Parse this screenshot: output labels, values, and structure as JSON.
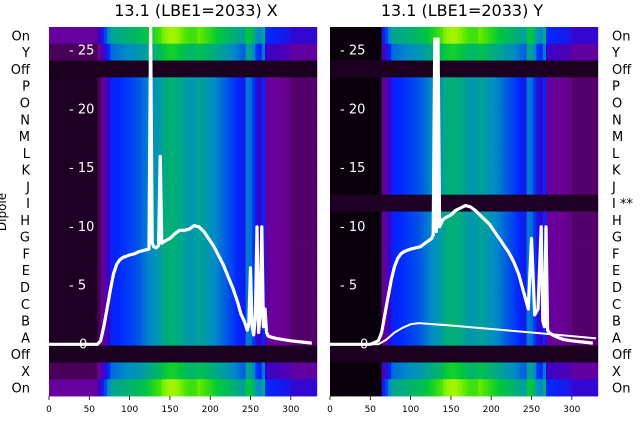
{
  "chart_data": [
    {
      "type": "heatmap",
      "title": "13.1 (LBE1=2033) X",
      "ylabel": "Dipole",
      "row_labels_top_to_bottom": [
        "On",
        "Y",
        "Off",
        "P",
        "O",
        "N",
        "M",
        "L",
        "K",
        "J",
        "I",
        "H",
        "G",
        "F",
        "E",
        "D",
        "C",
        "B",
        "A",
        "Off",
        "X",
        "On"
      ],
      "x_ticks": [
        0,
        50,
        100,
        150,
        200,
        250,
        300
      ],
      "xlim": [
        0,
        330
      ],
      "overlay_ticks": [
        0,
        5,
        10,
        15,
        20,
        25
      ],
      "overlay_ylim": [
        -4.4,
        27
      ],
      "overlay_series": [
        {
          "x": [
            0,
            30,
            60,
            64,
            68,
            72,
            76,
            80,
            84,
            88,
            92,
            96,
            100,
            106,
            112,
            118,
            124,
            126,
            128,
            130,
            133,
            136,
            138,
            140,
            144,
            150,
            156,
            162,
            168,
            174,
            180,
            186,
            192,
            198,
            204,
            210,
            216,
            222,
            228,
            234,
            238,
            242,
            244,
            246,
            248,
            250,
            252,
            254,
            256,
            258,
            260,
            262,
            264,
            266,
            268,
            270,
            272,
            276,
            282,
            290,
            300,
            312,
            326
          ],
          "y": [
            0,
            0,
            0,
            0.3,
            1.5,
            3,
            4.6,
            6,
            6.8,
            7.2,
            7.4,
            7.5,
            7.6,
            7.7,
            7.9,
            8,
            8.1,
            27,
            8.6,
            8.3,
            8.2,
            8.4,
            16,
            8.6,
            8.8,
            9,
            9.4,
            9.7,
            9.7,
            9.8,
            10.1,
            10,
            9.6,
            9,
            8.4,
            7.6,
            6.8,
            5.8,
            4.8,
            3.6,
            2.6,
            2,
            1.6,
            1.2,
            1.8,
            6.5,
            1.5,
            0.8,
            2.4,
            10,
            1,
            2.5,
            10,
            1.5,
            3,
            1,
            0.7,
            0.6,
            0.5,
            0.4,
            0.3,
            0.2,
            0.1
          ]
        }
      ],
      "colormap": "black-purple-blue-green-yellow"
    },
    {
      "type": "heatmap",
      "title": "13.1 (LBE1=2033) Y",
      "ylabel": "",
      "row_labels_top_to_bottom": [
        "On",
        "Y",
        "Off",
        "P",
        "O",
        "N",
        "M",
        "L",
        "K",
        "J",
        "I **",
        "H",
        "G",
        "F",
        "E",
        "D",
        "C",
        "B",
        "A",
        "Off",
        "X",
        "On"
      ],
      "x_ticks": [
        0,
        50,
        100,
        150,
        200,
        250,
        300
      ],
      "xlim": [
        0,
        330
      ],
      "overlay_ticks": [
        0,
        5,
        10,
        15,
        20,
        25
      ],
      "overlay_ylim": [
        -4.4,
        27
      ],
      "overlay_series": [
        {
          "x": [
            0,
            30,
            50,
            60,
            64,
            68,
            72,
            76,
            80,
            84,
            88,
            92,
            96,
            100,
            106,
            112,
            118,
            124,
            126,
            128,
            130,
            132,
            134,
            136,
            138,
            140,
            144,
            150,
            156,
            162,
            168,
            174,
            180,
            186,
            192,
            198,
            204,
            210,
            216,
            222,
            228,
            234,
            238,
            242,
            246,
            250,
            254,
            258,
            262,
            264,
            266,
            268,
            270,
            272,
            276,
            282,
            290,
            300,
            312,
            326
          ],
          "y": [
            0,
            0,
            0,
            0.3,
            1,
            2.5,
            4,
            5.5,
            6.6,
            7.3,
            7.7,
            7.9,
            8,
            8.1,
            8.2,
            8.3,
            8.6,
            8.9,
            9,
            9.3,
            26,
            9.6,
            26,
            10,
            10.3,
            10.6,
            10.8,
            11,
            11.4,
            11.6,
            11.8,
            11.7,
            11.4,
            11,
            10.6,
            10.2,
            9.6,
            9,
            8.4,
            7.8,
            7,
            6,
            5,
            4,
            3,
            9,
            2.5,
            3,
            10,
            2,
            1.5,
            10,
            1.2,
            1,
            0.8,
            0.6,
            0.4,
            0.3,
            0.2,
            0.1
          ]
        },
        {
          "x": [
            0,
            40,
            60,
            70,
            80,
            90,
            100,
            110,
            150,
            200,
            250,
            300,
            330
          ],
          "y": [
            0,
            0,
            0,
            0.4,
            1,
            1.4,
            1.7,
            1.8,
            1.6,
            1.3,
            1,
            0.7,
            0.5
          ]
        }
      ],
      "colormap": "black-purple-blue-green-yellow"
    }
  ]
}
